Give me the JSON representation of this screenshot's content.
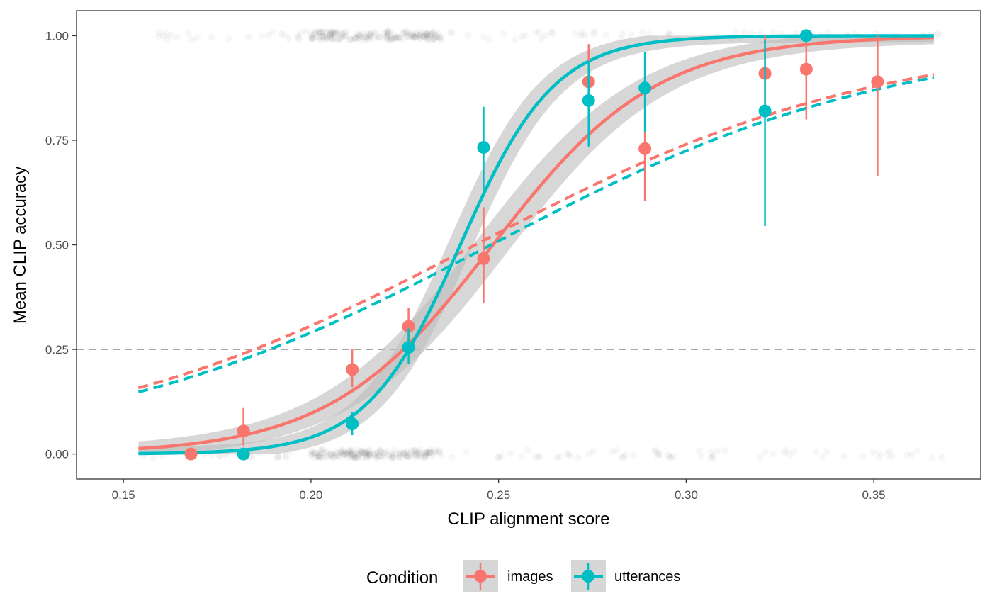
{
  "chart_data": {
    "type": "scatter",
    "xlabel": "CLIP alignment score",
    "ylabel": "Mean CLIP accuracy",
    "xlim": [
      0.1375,
      0.3785
    ],
    "ylim": [
      -0.06,
      1.06
    ],
    "x_ticks": [
      0.15,
      0.2,
      0.25,
      0.3,
      0.35
    ],
    "x_tick_labels": [
      "0.15",
      "0.20",
      "0.25",
      "0.30",
      "0.35"
    ],
    "y_ticks": [
      0.0,
      0.25,
      0.5,
      0.75,
      1.0
    ],
    "y_tick_labels": [
      "0.00",
      "0.25",
      "0.50",
      "0.75",
      "1.00"
    ],
    "chance_line": 0.25,
    "fit_range": [
      0.154,
      0.366
    ],
    "legend": {
      "title": "Condition",
      "position": "bottom"
    },
    "series": [
      {
        "name": "images",
        "color": "#F8766D",
        "points": [
          {
            "x": 0.168,
            "y": 0.0,
            "lo": 0.0,
            "hi": 0.0
          },
          {
            "x": 0.182,
            "y": 0.055,
            "lo": 0.02,
            "hi": 0.11
          },
          {
            "x": 0.211,
            "y": 0.202,
            "lo": 0.16,
            "hi": 0.25
          },
          {
            "x": 0.226,
            "y": 0.305,
            "lo": 0.25,
            "hi": 0.35
          },
          {
            "x": 0.246,
            "y": 0.467,
            "lo": 0.36,
            "hi": 0.59
          },
          {
            "x": 0.274,
            "y": 0.89,
            "lo": 0.79,
            "hi": 0.98
          },
          {
            "x": 0.289,
            "y": 0.73,
            "lo": 0.605,
            "hi": 0.84
          },
          {
            "x": 0.321,
            "y": 0.91,
            "lo": 0.83,
            "hi": 1.0
          },
          {
            "x": 0.332,
            "y": 0.92,
            "lo": 0.8,
            "hi": 0.99
          },
          {
            "x": 0.351,
            "y": 0.89,
            "lo": 0.665,
            "hi": 1.0
          }
        ],
        "logistic_fit": {
          "midpoint": 0.2485,
          "slope": 46
        },
        "linear_prob_fit": {
          "y_start": 0.158,
          "y_end": 0.907
        }
      },
      {
        "name": "utterances",
        "color": "#00BFC4",
        "points": [
          {
            "x": 0.182,
            "y": 0.0,
            "lo": 0.0,
            "hi": 0.0
          },
          {
            "x": 0.211,
            "y": 0.072,
            "lo": 0.045,
            "hi": 0.1
          },
          {
            "x": 0.226,
            "y": 0.255,
            "lo": 0.215,
            "hi": 0.3
          },
          {
            "x": 0.246,
            "y": 0.733,
            "lo": 0.63,
            "hi": 0.83
          },
          {
            "x": 0.274,
            "y": 0.845,
            "lo": 0.735,
            "hi": 0.94
          },
          {
            "x": 0.289,
            "y": 0.875,
            "lo": 0.77,
            "hi": 0.96
          },
          {
            "x": 0.321,
            "y": 0.82,
            "lo": 0.545,
            "hi": 0.99
          },
          {
            "x": 0.332,
            "y": 1.0,
            "lo": 1.0,
            "hi": 1.0
          }
        ],
        "logistic_fit": {
          "midpoint": 0.2398,
          "slope": 80
        },
        "linear_prob_fit": {
          "y_start": 0.148,
          "y_end": 0.9
        }
      }
    ],
    "raw_observations": {
      "y_values": [
        0,
        1
      ],
      "x_range": [
        0.155,
        0.37
      ],
      "dense_range": [
        0.2,
        0.235
      ]
    }
  }
}
